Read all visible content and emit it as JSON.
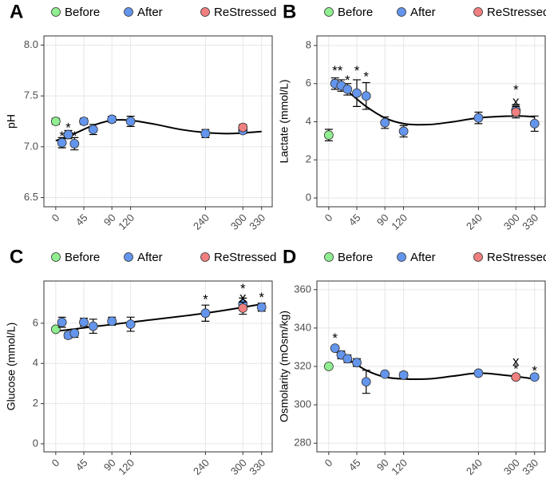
{
  "chart_data": [
    {
      "type": "scatter",
      "panel": "A",
      "y_label": "pH",
      "xlim": [
        -19,
        347
      ],
      "xticks": [
        0,
        45,
        90,
        120,
        240,
        300,
        330
      ],
      "ylim": [
        6.41,
        8.09
      ],
      "yticks": [
        {
          "value": 6.5,
          "label": "6.5"
        },
        {
          "value": 7.0,
          "label": "7.0"
        },
        {
          "value": 7.5,
          "label": "7.5"
        },
        {
          "value": 8.0,
          "label": "8.0"
        }
      ],
      "grid": true,
      "series": [
        {
          "name": "Before",
          "color": "#90ee90",
          "x": [
            0
          ],
          "values": [
            7.25
          ],
          "errors": [
            0.03
          ]
        },
        {
          "name": "After",
          "color": "#6495ed",
          "x": [
            10,
            20,
            30,
            45,
            60,
            90,
            120,
            240,
            300
          ],
          "values": [
            7.04,
            7.12,
            7.03,
            7.25,
            7.17,
            7.27,
            7.25,
            7.13,
            7.16
          ],
          "errors": [
            0.05,
            0.04,
            0.06,
            0.03,
            0.05,
            0.03,
            0.05,
            0.04,
            0.03
          ]
        },
        {
          "name": "ReStressed",
          "color": "#f08080",
          "x": [
            300
          ],
          "values": [
            7.19
          ],
          "errors": [
            0.03
          ]
        }
      ],
      "curve": {
        "x": [
          0,
          30,
          60,
          90,
          120,
          160,
          200,
          240,
          280,
          330
        ],
        "values": [
          7.06,
          7.13,
          7.21,
          7.26,
          7.26,
          7.22,
          7.17,
          7.14,
          7.13,
          7.15
        ]
      },
      "annotations": [
        {
          "text": "*",
          "x": 10,
          "y": 7.13
        },
        {
          "text": "*",
          "x": 20,
          "y": 7.21
        },
        {
          "text": "*",
          "x": 30,
          "y": 7.13
        }
      ]
    },
    {
      "type": "scatter",
      "panel": "B",
      "y_label": "Lactate (mmol/L)",
      "xlim": [
        -19,
        347
      ],
      "xticks": [
        0,
        45,
        90,
        120,
        240,
        300,
        330
      ],
      "ylim": [
        -0.46,
        8.5
      ],
      "yticks": [
        0,
        2,
        4,
        6,
        8
      ],
      "grid": true,
      "series": [
        {
          "name": "Before",
          "color": "#90ee90",
          "x": [
            0
          ],
          "values": [
            3.3
          ],
          "errors": [
            0.3
          ]
        },
        {
          "name": "After",
          "color": "#6495ed",
          "x": [
            10,
            20,
            30,
            45,
            60,
            90,
            120,
            240,
            300,
            330
          ],
          "values": [
            6.0,
            5.9,
            5.7,
            5.5,
            5.35,
            3.95,
            3.5,
            4.2,
            4.6,
            3.9
          ],
          "errors": [
            0.3,
            0.3,
            0.3,
            0.7,
            0.7,
            0.3,
            0.3,
            0.3,
            0.3,
            0.4
          ]
        },
        {
          "name": "ReStressed",
          "color": "#f08080",
          "x": [
            300
          ],
          "values": [
            4.5
          ],
          "errors": [
            0.3
          ]
        }
      ],
      "curve": {
        "x": [
          5,
          30,
          60,
          90,
          120,
          160,
          200,
          240,
          300,
          330
        ],
        "values": [
          6.2,
          5.6,
          4.8,
          4.2,
          3.9,
          3.85,
          4.0,
          4.2,
          4.3,
          4.25
        ]
      },
      "annotations": [
        {
          "text": "**",
          "x": 14,
          "y": 6.8
        },
        {
          "text": "*",
          "x": 30,
          "y": 6.3
        },
        {
          "text": "*",
          "x": 45,
          "y": 6.8
        },
        {
          "text": "*",
          "x": 60,
          "y": 6.5
        },
        {
          "text": "*",
          "x": 300,
          "y": 5.8
        },
        {
          "text": "x",
          "x": 300,
          "y": 5.2
        }
      ]
    },
    {
      "type": "scatter",
      "panel": "C",
      "y_label": "Glucose (mmol/L)",
      "xlim": [
        -19,
        347
      ],
      "xticks": [
        0,
        45,
        90,
        120,
        240,
        300,
        330
      ],
      "ylim": [
        -0.4,
        8.1
      ],
      "yticks": [
        0,
        2,
        4,
        6
      ],
      "grid": true,
      "series": [
        {
          "name": "Before",
          "color": "#90ee90",
          "x": [
            0
          ],
          "values": [
            5.7
          ],
          "errors": [
            0.1
          ]
        },
        {
          "name": "After",
          "color": "#6495ed",
          "x": [
            10,
            20,
            30,
            45,
            60,
            90,
            120,
            240,
            300,
            330
          ],
          "values": [
            6.05,
            5.4,
            5.5,
            6.05,
            5.85,
            6.1,
            5.95,
            6.5,
            6.95,
            6.8
          ],
          "errors": [
            0.25,
            0.15,
            0.2,
            0.2,
            0.35,
            0.2,
            0.35,
            0.4,
            0.3,
            0.2
          ]
        },
        {
          "name": "ReStressed",
          "color": "#f08080",
          "x": [
            300
          ],
          "values": [
            6.75
          ],
          "errors": [
            0.3
          ]
        }
      ],
      "curve": {
        "x": [
          0,
          120,
          240,
          330
        ],
        "values": [
          5.6,
          6.05,
          6.5,
          6.95
        ]
      },
      "annotations": [
        {
          "text": "*",
          "x": 240,
          "y": 7.3
        },
        {
          "text": "*",
          "x": 300,
          "y": 7.85
        },
        {
          "text": "x",
          "x": 300,
          "y": 7.4
        },
        {
          "text": "*",
          "x": 330,
          "y": 7.4
        }
      ]
    },
    {
      "type": "scatter",
      "panel": "D",
      "y_label": "Osmolarity (mOsm/kg)",
      "xlim": [
        -19,
        347
      ],
      "xticks": [
        0,
        45,
        90,
        120,
        240,
        300,
        330
      ],
      "ylim": [
        275.5,
        364.5
      ],
      "yticks": [
        280,
        300,
        320,
        340,
        360
      ],
      "grid": true,
      "series": [
        {
          "name": "Before",
          "color": "#90ee90",
          "x": [
            0
          ],
          "values": [
            320
          ],
          "errors": [
            1
          ]
        },
        {
          "name": "After",
          "color": "#6495ed",
          "x": [
            10,
            20,
            30,
            45,
            60,
            90,
            120,
            240,
            300,
            330
          ],
          "values": [
            329.5,
            326,
            324,
            322,
            312,
            316,
            315.5,
            316.5,
            314.5,
            314.5
          ],
          "errors": [
            1,
            2,
            2,
            2,
            6,
            1,
            1.5,
            1,
            1,
            1
          ]
        },
        {
          "name": "ReStressed",
          "color": "#f08080",
          "x": [
            300
          ],
          "values": [
            314.5
          ],
          "errors": [
            1
          ]
        }
      ],
      "curve": {
        "x": [
          5,
          30,
          60,
          90,
          120,
          160,
          200,
          240,
          280,
          330
        ],
        "values": [
          329,
          324,
          318,
          314.5,
          313.5,
          313.5,
          315,
          316.5,
          315.5,
          313.5
        ]
      },
      "annotations": [
        {
          "text": "*",
          "x": 10,
          "y": 336
        },
        {
          "text": "x",
          "x": 300,
          "y": 324
        },
        {
          "text": "*",
          "x": 300,
          "y": 320
        },
        {
          "text": "*",
          "x": 330,
          "y": 319
        }
      ]
    }
  ]
}
